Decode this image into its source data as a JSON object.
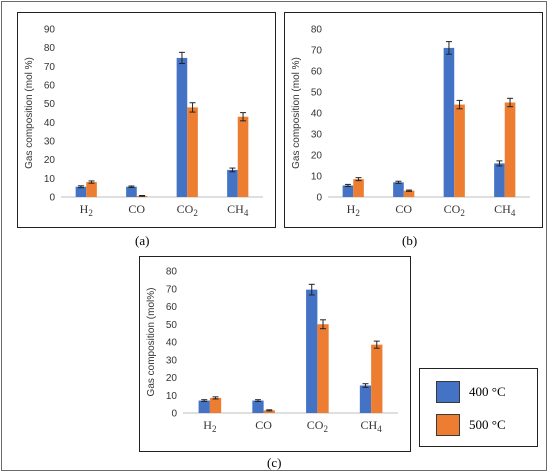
{
  "legend": {
    "series": [
      {
        "name": "400 °C",
        "color": "#4472C4"
      },
      {
        "name": "500 °C",
        "color": "#ED7D31"
      }
    ]
  },
  "chart_data": [
    {
      "type": "bar",
      "caption": "(a)",
      "ylabel": "Gas composition (mol %)",
      "ylim": [
        0,
        90
      ],
      "yticks": [
        0,
        10,
        20,
        30,
        40,
        50,
        60,
        70,
        80,
        90
      ],
      "categories": [
        {
          "main": "H",
          "sub": "2"
        },
        {
          "main": "CO",
          "sub": ""
        },
        {
          "main": "CO",
          "sub": "2"
        },
        {
          "main": "CH",
          "sub": "4"
        }
      ],
      "series": [
        {
          "name": "400 °C",
          "values": [
            5.5,
            5.5,
            74.5,
            14.5
          ],
          "errors": [
            0.5,
            0.4,
            3.0,
            1.0
          ]
        },
        {
          "name": "500 °C",
          "values": [
            8.0,
            0.6,
            48.0,
            43.0
          ],
          "errors": [
            0.6,
            0.2,
            2.5,
            2.2
          ]
        }
      ]
    },
    {
      "type": "bar",
      "caption": "(b)",
      "ylabel": "Gas composition (mol %)",
      "ylim": [
        0,
        80
      ],
      "yticks": [
        0,
        10,
        20,
        30,
        40,
        50,
        60,
        70,
        80
      ],
      "categories": [
        {
          "main": "H",
          "sub": "2"
        },
        {
          "main": "CO",
          "sub": ""
        },
        {
          "main": "CO",
          "sub": "2"
        },
        {
          "main": "CH",
          "sub": "4"
        }
      ],
      "series": [
        {
          "name": "400 °C",
          "values": [
            5.5,
            7.0,
            71.0,
            16.0
          ],
          "errors": [
            0.5,
            0.5,
            3.0,
            1.2
          ]
        },
        {
          "name": "500 °C",
          "values": [
            8.5,
            3.0,
            44.0,
            45.0
          ],
          "errors": [
            0.7,
            0.3,
            2.0,
            2.0
          ]
        }
      ]
    },
    {
      "type": "bar",
      "caption": "(c)",
      "ylabel": "Gas composition (mol%)",
      "ylim": [
        0,
        80
      ],
      "yticks": [
        0,
        10,
        20,
        30,
        40,
        50,
        60,
        70,
        80
      ],
      "categories": [
        {
          "main": "H",
          "sub": "2"
        },
        {
          "main": "CO",
          "sub": ""
        },
        {
          "main": "CO",
          "sub": "2"
        },
        {
          "main": "CH",
          "sub": "4"
        }
      ],
      "series": [
        {
          "name": "400 °C",
          "values": [
            7.0,
            7.0,
            69.5,
            15.5
          ],
          "errors": [
            0.5,
            0.5,
            3.0,
            1.0
          ]
        },
        {
          "name": "500 °C",
          "values": [
            8.5,
            1.5,
            50.0,
            38.5
          ],
          "errors": [
            0.6,
            0.3,
            2.5,
            2.0
          ]
        }
      ]
    }
  ]
}
